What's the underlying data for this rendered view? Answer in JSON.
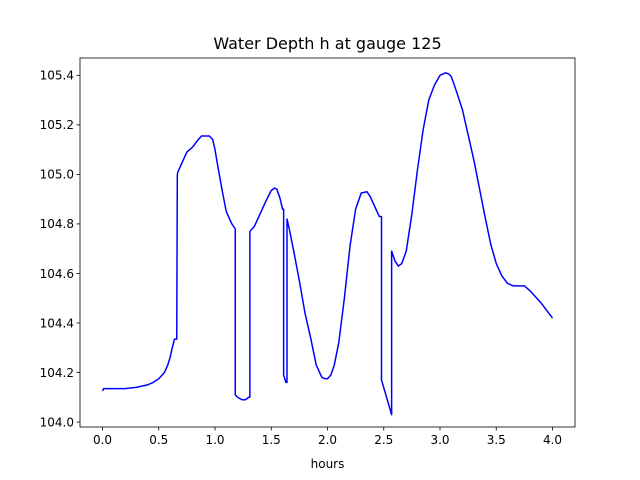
{
  "chart_data": {
    "type": "line",
    "title": "Water Depth h at gauge 125",
    "xlabel": "hours",
    "ylabel": "",
    "xlim": [
      -0.2,
      4.2
    ],
    "ylim": [
      103.98,
      105.47
    ],
    "xticks": [
      0.0,
      0.5,
      1.0,
      1.5,
      2.0,
      2.5,
      3.0,
      3.5,
      4.0
    ],
    "xtick_labels": [
      "0.0",
      "0.5",
      "1.0",
      "1.5",
      "2.0",
      "2.5",
      "3.0",
      "3.5",
      "4.0"
    ],
    "yticks": [
      104.0,
      104.2,
      104.4,
      104.6,
      104.8,
      105.0,
      105.2,
      105.4
    ],
    "ytick_labels": [
      "104.0",
      "104.2",
      "104.4",
      "104.6",
      "104.8",
      "105.0",
      "105.2",
      "105.4"
    ],
    "grid": false,
    "legend": "none",
    "series": [
      {
        "color": "#0000ff",
        "x": [
          0.0,
          0.01,
          0.1,
          0.2,
          0.3,
          0.4,
          0.45,
          0.5,
          0.55,
          0.58,
          0.6,
          0.62,
          0.64,
          0.66,
          0.665,
          0.67,
          0.7,
          0.75,
          0.8,
          0.85,
          0.88,
          0.9,
          0.95,
          0.98,
          1.0,
          1.03,
          1.07,
          1.1,
          1.15,
          1.18,
          1.18,
          1.2,
          1.24,
          1.27,
          1.3,
          1.31,
          1.31,
          1.35,
          1.4,
          1.45,
          1.5,
          1.53,
          1.55,
          1.58,
          1.6,
          1.61,
          1.61,
          1.63,
          1.64,
          1.64,
          1.66,
          1.7,
          1.75,
          1.8,
          1.85,
          1.9,
          1.95,
          1.98,
          2.0,
          2.03,
          2.06,
          2.1,
          2.15,
          2.2,
          2.25,
          2.3,
          2.35,
          2.38,
          2.4,
          2.43,
          2.46,
          2.48,
          2.48,
          2.57,
          2.57,
          2.6,
          2.63,
          2.66,
          2.7,
          2.75,
          2.8,
          2.85,
          2.9,
          2.95,
          3.0,
          3.05,
          3.08,
          3.1,
          3.12,
          3.15,
          3.2,
          3.3,
          3.4,
          3.45,
          3.5,
          3.55,
          3.6,
          3.65,
          3.7,
          3.75,
          3.8,
          3.9,
          4.0
        ],
        "y": [
          104.125,
          104.135,
          104.135,
          104.135,
          104.14,
          104.15,
          104.16,
          104.175,
          104.2,
          104.23,
          104.26,
          104.3,
          104.335,
          104.335,
          105.0,
          105.01,
          105.04,
          105.09,
          105.11,
          105.14,
          105.155,
          105.155,
          105.155,
          105.14,
          105.1,
          105.02,
          104.92,
          104.85,
          104.8,
          104.78,
          104.11,
          104.1,
          104.09,
          104.09,
          104.1,
          104.1,
          104.77,
          104.79,
          104.84,
          104.89,
          104.935,
          104.945,
          104.94,
          104.9,
          104.86,
          104.86,
          104.19,
          104.16,
          104.16,
          104.82,
          104.78,
          104.69,
          104.57,
          104.44,
          104.34,
          104.23,
          104.18,
          104.175,
          104.175,
          104.19,
          104.23,
          104.32,
          104.5,
          104.71,
          104.86,
          104.925,
          104.93,
          104.91,
          104.89,
          104.86,
          104.83,
          104.83,
          104.17,
          104.03,
          104.69,
          104.65,
          104.63,
          104.64,
          104.69,
          104.84,
          105.02,
          105.18,
          105.3,
          105.36,
          105.4,
          105.41,
          105.405,
          105.395,
          105.37,
          105.33,
          105.26,
          105.06,
          104.83,
          104.72,
          104.64,
          104.59,
          104.56,
          104.55,
          104.55,
          104.55,
          104.53,
          104.48,
          104.42
        ]
      }
    ]
  }
}
